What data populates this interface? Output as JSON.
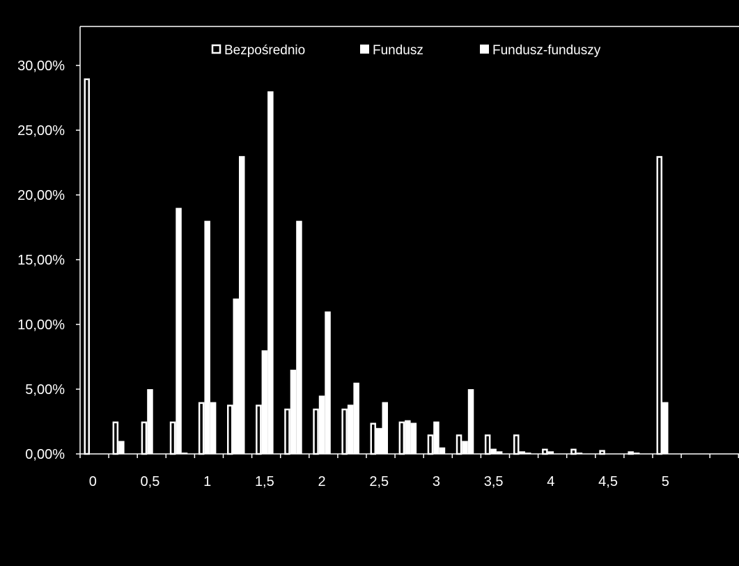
{
  "chart_data": {
    "type": "bar",
    "categories": [
      "0",
      "",
      "0,5",
      "",
      "1",
      "",
      "1,5",
      "",
      "2",
      "",
      "2,5",
      "",
      "3",
      "",
      "3,5",
      "",
      "4",
      "",
      "4,5",
      "",
      "5",
      "",
      ""
    ],
    "series": [
      {
        "name": "Bezpośrednio",
        "style": "outline",
        "values": [
          29,
          2.5,
          2.5,
          2.5,
          4,
          3.8,
          3.8,
          3.5,
          3.5,
          3.5,
          2.4,
          2.5,
          1.5,
          1.5,
          1.5,
          1.5,
          0.4,
          0.4,
          0.3,
          0.2,
          23,
          0,
          0
        ]
      },
      {
        "name": "Fundusz",
        "style": "solid",
        "values": [
          0,
          1,
          5,
          19,
          18,
          12,
          8,
          6.5,
          4.5,
          3.8,
          2,
          2.6,
          2.5,
          1,
          0.4,
          0.2,
          0.2,
          0.1,
          0,
          0.1,
          4,
          0,
          0
        ]
      },
      {
        "name": "Fundusz-funduszy",
        "style": "solid",
        "values": [
          0,
          0,
          0,
          0.1,
          4,
          23,
          28,
          18,
          11,
          5.5,
          4,
          2.4,
          0.5,
          5,
          0.2,
          0.1,
          0,
          0,
          0,
          0,
          0,
          0,
          0
        ]
      }
    ],
    "ylim": [
      0,
      30
    ],
    "yticks": [
      "0,00%",
      "5,00%",
      "10,00%",
      "15,00%",
      "20,00%",
      "25,00%",
      "30,00%"
    ],
    "xlabel": "",
    "ylabel": "",
    "title": "",
    "legend_position": "top",
    "colors": {
      "background": "#000000",
      "foreground": "#ffffff"
    }
  }
}
